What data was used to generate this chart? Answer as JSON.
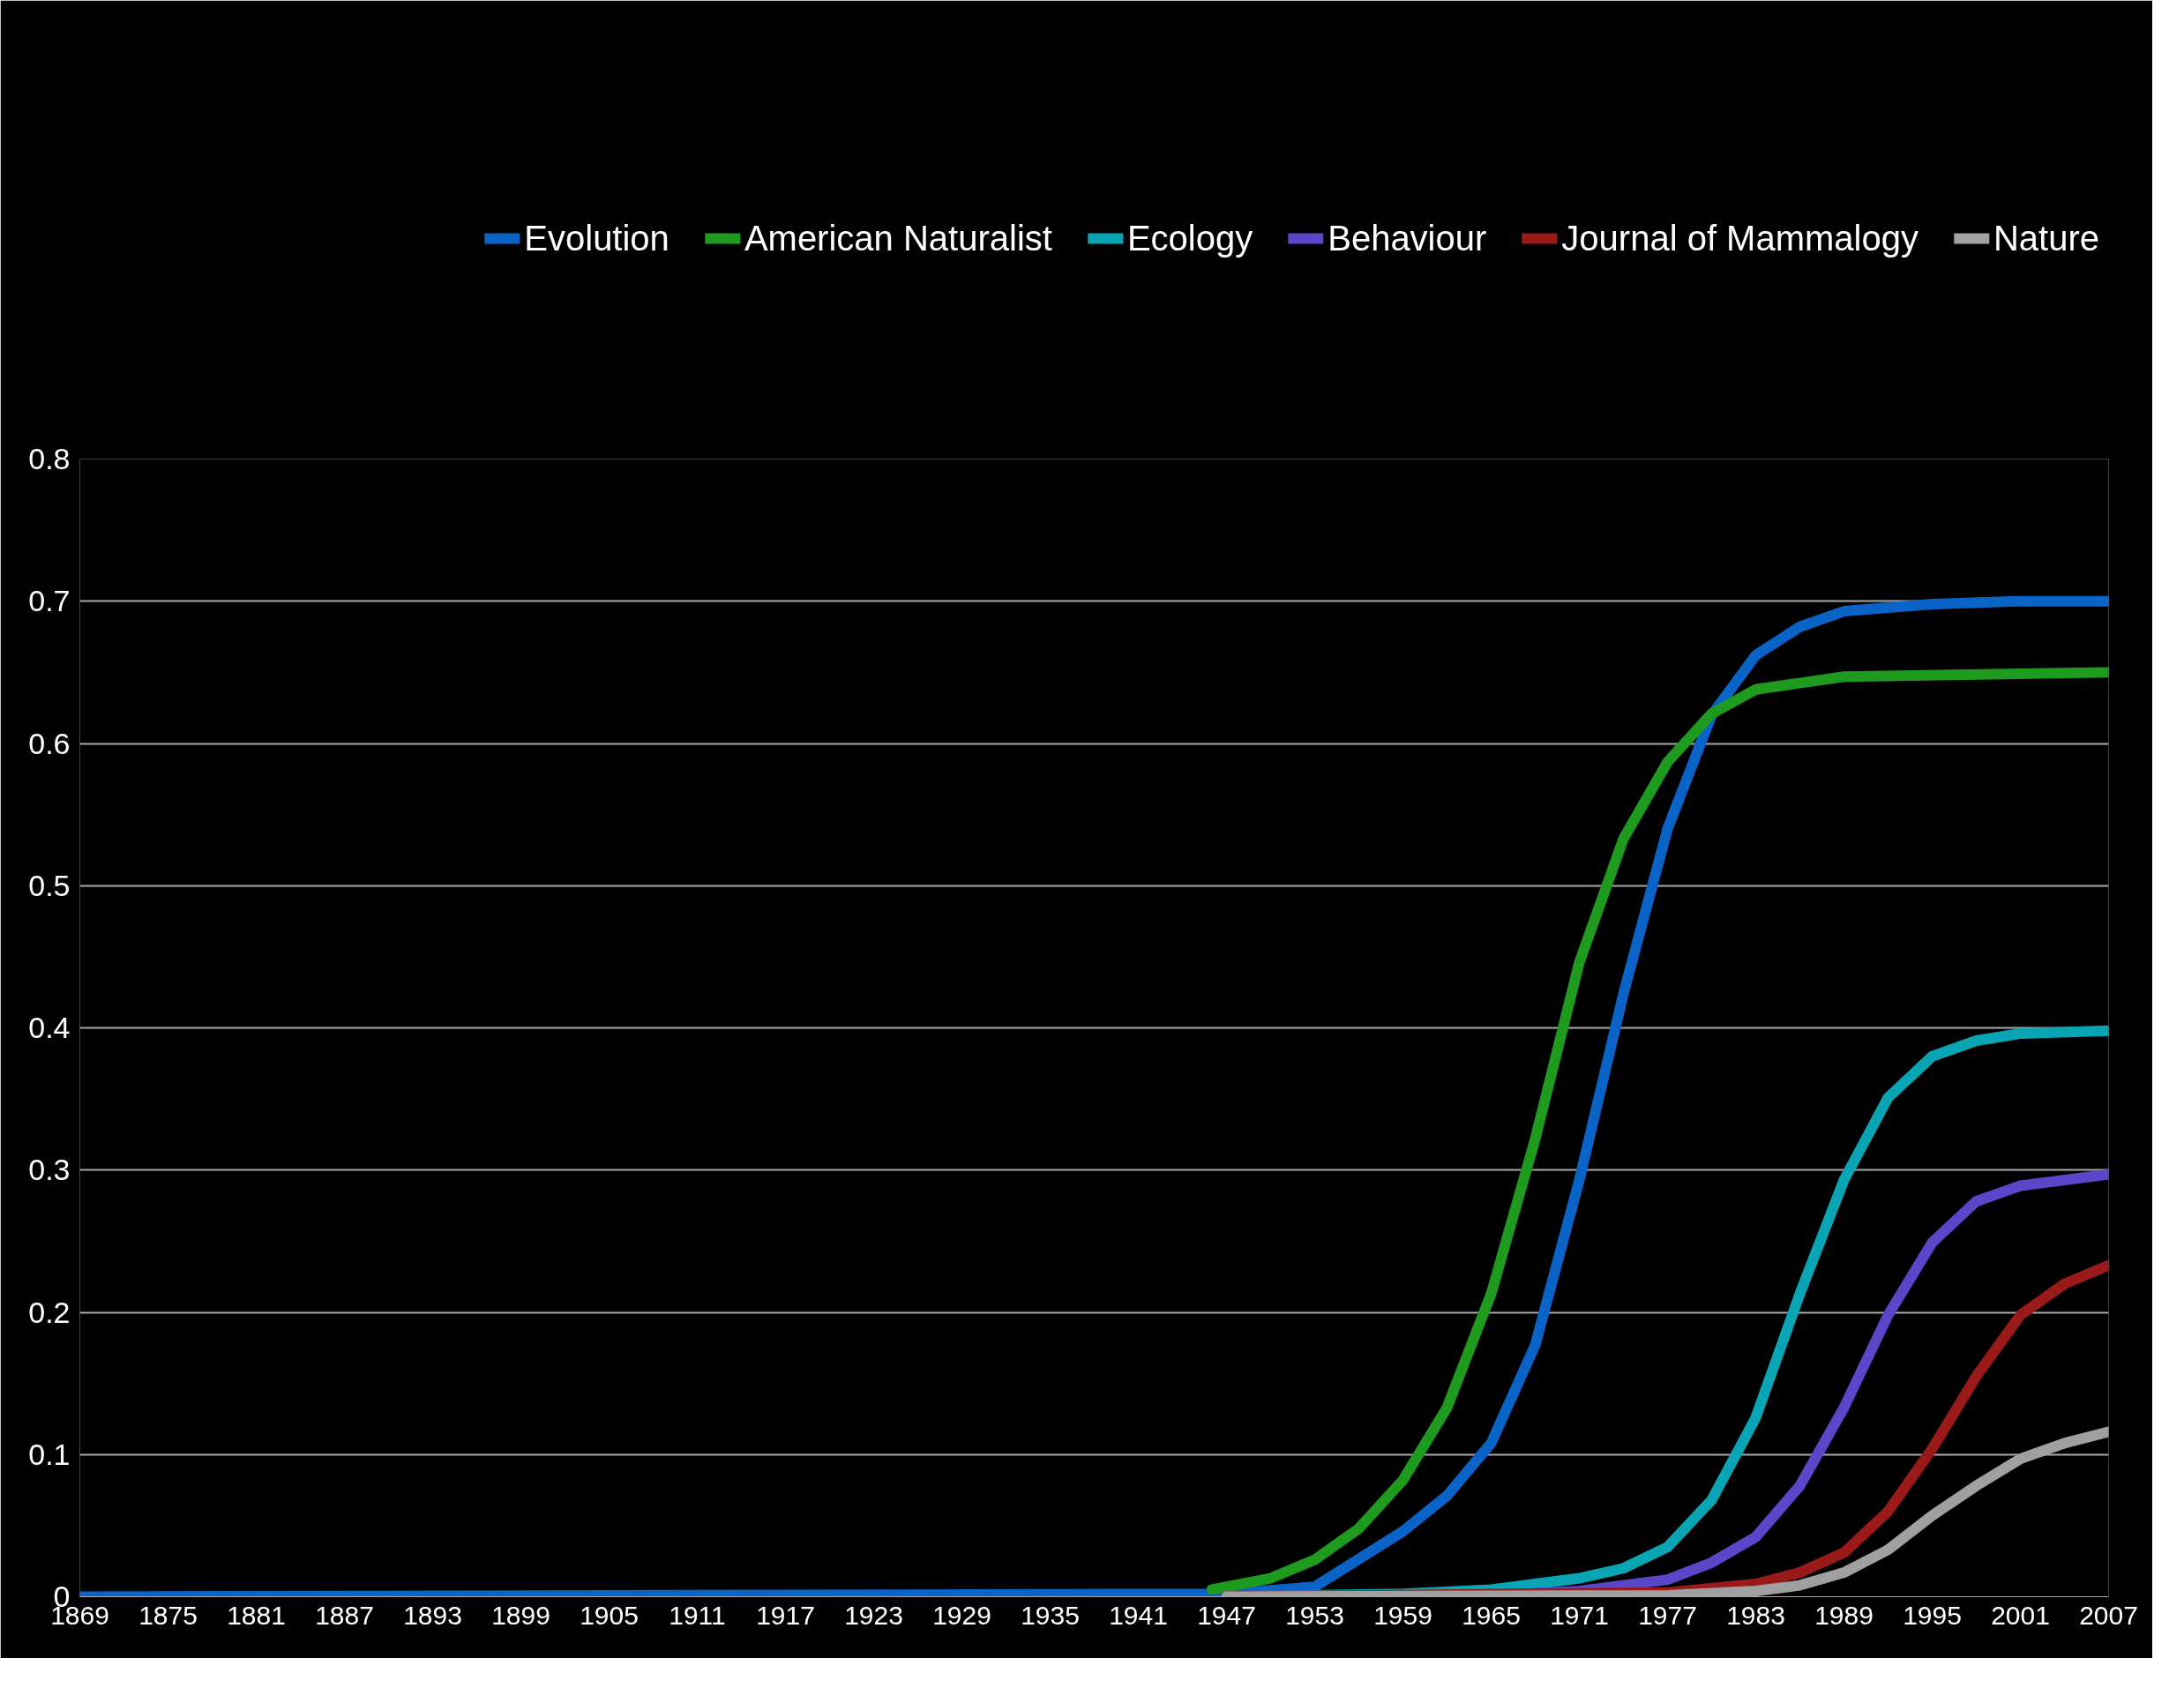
{
  "chart_data": {
    "type": "line",
    "xlim": [
      1869,
      2007
    ],
    "xticks": [
      1869,
      1875,
      1881,
      1887,
      1893,
      1899,
      1905,
      1911,
      1917,
      1923,
      1929,
      1935,
      1941,
      1947,
      1953,
      1959,
      1965,
      1971,
      1977,
      1983,
      1989,
      1995,
      2001,
      2007
    ],
    "ylim": [
      0,
      0.8
    ],
    "yticks": [
      0,
      0.1,
      0.2,
      0.3,
      0.4,
      0.5,
      0.6,
      0.7,
      0.8
    ],
    "grid": "y",
    "legend": "top",
    "marker": "none",
    "line_style": "solid",
    "series": [
      {
        "name": "Evolution",
        "color": "#0a64c8",
        "x": [
          1869,
          1947,
          1953,
          1959,
          1962,
          1965,
          1968,
          1971,
          1974,
          1977,
          1980,
          1983,
          1986,
          1989,
          1995,
          2001,
          2007
        ],
        "values": [
          0,
          0.002,
          0.007,
          0.046,
          0.071,
          0.108,
          0.177,
          0.293,
          0.424,
          0.54,
          0.62,
          0.662,
          0.682,
          0.693,
          0.698,
          0.7,
          0.7
        ]
      },
      {
        "name": "American Naturalist",
        "color": "#1e9a1e",
        "x": [
          1946,
          1950,
          1953,
          1956,
          1959,
          1962,
          1965,
          1968,
          1971,
          1974,
          1977,
          1980,
          1983,
          1989,
          2007
        ],
        "values": [
          0.005,
          0.013,
          0.026,
          0.048,
          0.082,
          0.133,
          0.213,
          0.322,
          0.446,
          0.533,
          0.587,
          0.621,
          0.638,
          0.647,
          0.65
        ]
      },
      {
        "name": "Ecology",
        "color": "#0aa5b4",
        "x": [
          1947,
          1959,
          1965,
          1971,
          1974,
          1977,
          1980,
          1983,
          1986,
          1989,
          1992,
          1995,
          1998,
          2001,
          2007
        ],
        "values": [
          0,
          0.002,
          0.005,
          0.013,
          0.02,
          0.035,
          0.068,
          0.126,
          0.213,
          0.293,
          0.351,
          0.38,
          0.391,
          0.396,
          0.398
        ]
      },
      {
        "name": "Behaviour",
        "color": "#5a46c8",
        "x": [
          1947,
          1965,
          1971,
          1977,
          1980,
          1983,
          1986,
          1989,
          1992,
          1995,
          1998,
          2001,
          2007
        ],
        "values": [
          0,
          0.001,
          0.004,
          0.012,
          0.024,
          0.042,
          0.078,
          0.133,
          0.198,
          0.249,
          0.278,
          0.289,
          0.297
        ]
      },
      {
        "name": "Journal of Mammalogy",
        "color": "#9a1a1a",
        "x": [
          1947,
          1977,
          1983,
          1986,
          1989,
          1992,
          1995,
          1998,
          2001,
          2004,
          2007
        ],
        "values": [
          0,
          0.003,
          0.009,
          0.017,
          0.031,
          0.06,
          0.104,
          0.155,
          0.198,
          0.22,
          0.233
        ]
      },
      {
        "name": "Nature",
        "color": "#a0a0a0",
        "x": [
          1947,
          1977,
          1983,
          1986,
          1989,
          1992,
          1995,
          1998,
          2001,
          2004,
          2007
        ],
        "values": [
          0,
          0.001,
          0.004,
          0.008,
          0.017,
          0.033,
          0.057,
          0.078,
          0.097,
          0.108,
          0.116
        ]
      }
    ]
  }
}
